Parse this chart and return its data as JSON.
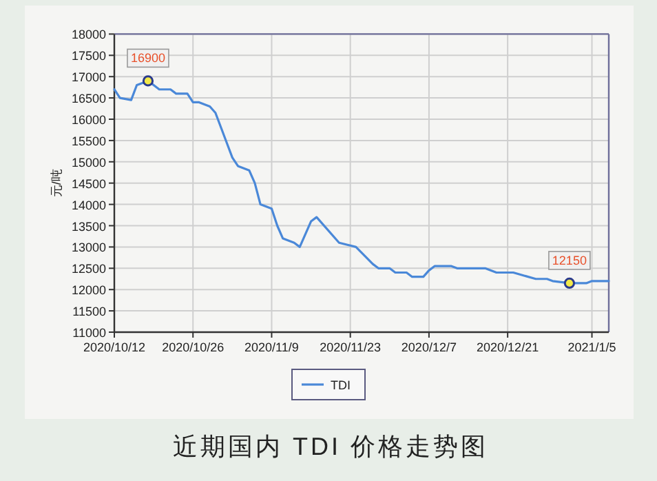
{
  "chart_data": {
    "type": "line",
    "ylabel": "元/吨",
    "annotations": [
      {
        "text": "16900",
        "x": "2020-10-18",
        "y": 16900
      },
      {
        "text": "12150",
        "x": "2021-01-01",
        "y": 12150
      },
      "近期国内 TDI 价格走势图"
    ],
    "x": [
      "2020-10-12",
      "2020-10-13",
      "2020-10-15",
      "2020-10-16",
      "2020-10-18",
      "2020-10-19",
      "2020-10-20",
      "2020-10-22",
      "2020-10-23",
      "2020-10-25",
      "2020-10-26",
      "2020-10-27",
      "2020-10-29",
      "2020-10-30",
      "2020-11-01",
      "2020-11-02",
      "2020-11-03",
      "2020-11-05",
      "2020-11-06",
      "2020-11-07",
      "2020-11-09",
      "2020-11-10",
      "2020-11-11",
      "2020-11-13",
      "2020-11-14",
      "2020-11-16",
      "2020-11-17",
      "2020-11-21",
      "2020-11-24",
      "2020-11-27",
      "2020-11-28",
      "2020-11-30",
      "2020-12-01",
      "2020-12-03",
      "2020-12-04",
      "2020-12-06",
      "2020-12-07",
      "2020-12-08",
      "2020-12-11",
      "2020-12-12",
      "2020-12-17",
      "2020-12-19",
      "2020-12-22",
      "2020-12-26",
      "2020-12-28",
      "2020-12-29",
      "2021-01-01",
      "2021-01-04",
      "2021-01-05",
      "2021-01-08"
    ],
    "series": [
      {
        "name": "TDI",
        "color": "#4a88d8",
        "values": [
          16700,
          16500,
          16450,
          16800,
          16900,
          16800,
          16700,
          16700,
          16600,
          16600,
          16400,
          16400,
          16300,
          16150,
          15450,
          15100,
          14900,
          14800,
          14500,
          14000,
          13900,
          13500,
          13200,
          13100,
          13000,
          13600,
          13700,
          13100,
          13000,
          12600,
          12500,
          12500,
          12400,
          12400,
          12300,
          12300,
          12450,
          12550,
          12550,
          12500,
          12500,
          12400,
          12400,
          12250,
          12250,
          12200,
          12150,
          12150,
          12200,
          12200
        ]
      }
    ],
    "xlim": [
      "2020-10-12",
      "2021-01-08"
    ],
    "xticks": [
      {
        "value": "2020-10-12",
        "label": "2020/10/12"
      },
      {
        "value": "2020-10-26",
        "label": "2020/10/26"
      },
      {
        "value": "2020-11-09",
        "label": "2020/11/9"
      },
      {
        "value": "2020-11-23",
        "label": "2020/11/23"
      },
      {
        "value": "2020-12-07",
        "label": "2020/12/7"
      },
      {
        "value": "2020-12-21",
        "label": "2020/12/21"
      },
      {
        "value": "2021-01-05",
        "label": "2021/1/5"
      }
    ],
    "ylim": [
      11000,
      18000
    ],
    "yticks": [
      11000,
      11500,
      12000,
      12500,
      13000,
      13500,
      14000,
      14500,
      15000,
      15500,
      16000,
      16500,
      17000,
      17500,
      18000
    ],
    "grid": true,
    "legend": "bottom",
    "line_style": "solid"
  }
}
